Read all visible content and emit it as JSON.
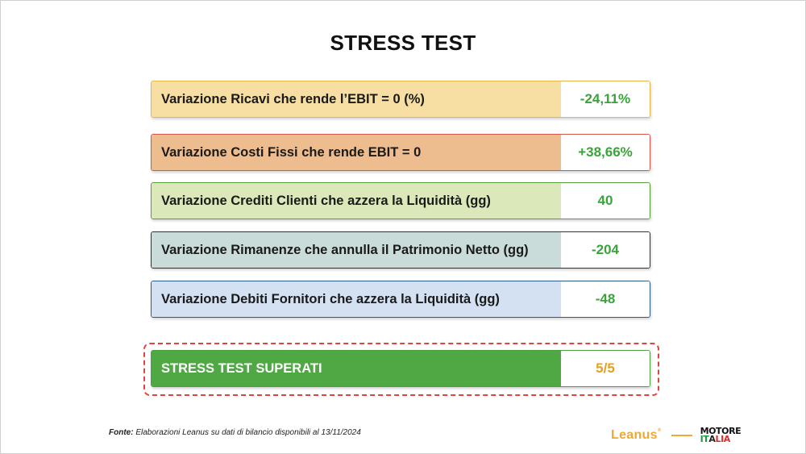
{
  "title": "STRESS TEST",
  "rows": [
    {
      "label": "Variazione Ricavi che rende l’EBIT = 0 (%)",
      "value": "-24,11%",
      "bg": "#f7dea3",
      "border": "#e6b94a"
    },
    {
      "label": "Variazione Costi Fissi che rende EBIT = 0",
      "value": "+38,66%",
      "bg": "#eebd8f",
      "border": "#d9534f"
    },
    {
      "label": "Variazione Crediti Clienti che azzera la Liquidità (gg)",
      "value": "40",
      "bg": "#dbe8b9",
      "border": "#5a9e3a"
    },
    {
      "label": "Variazione Rimanenze che annulla il Patrimonio Netto (gg)",
      "value": "-204",
      "bg": "#c9dcd9",
      "border": "#333333"
    },
    {
      "label": "Variazione Debiti Fornitori che azzera la Liquidità (gg)",
      "value": "-48",
      "bg": "#d3e1f3",
      "border": "#2e5d8a"
    }
  ],
  "summary": {
    "label": "STRESS TEST SUPERATI",
    "value": "5/5"
  },
  "footer": {
    "prefix": "Fonte:",
    "text": " Elaborazioni Leanus su dati di bilancio disponibili al 13/11/2024"
  },
  "logos": {
    "leanus": "Leanus",
    "leanus_mark": "®",
    "motore_top": "MOTORE",
    "motore_bottom": "ITALIA"
  },
  "colors": {
    "value_green": "#3aa33a",
    "summary_green": "#4fa843",
    "summary_value": "#e6a020",
    "dashed_red": "#e0443c"
  }
}
